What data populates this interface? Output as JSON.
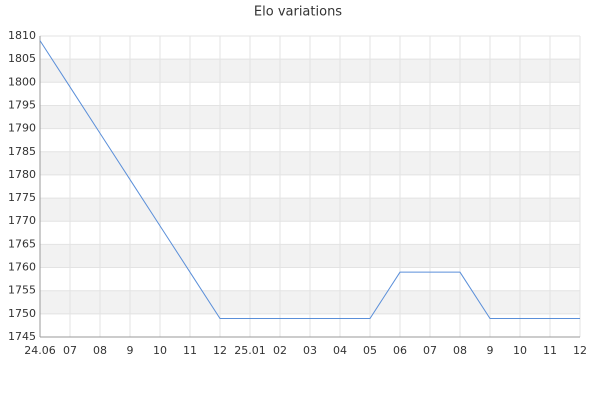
{
  "chart_data": {
    "type": "line",
    "title": "Elo variations",
    "categories": [
      "24.06",
      "07",
      "08",
      "9",
      "10",
      "11",
      "12",
      "25.01",
      "02",
      "03",
      "04",
      "05",
      "06",
      "07",
      "08",
      "9",
      "10",
      "11",
      "12"
    ],
    "values": [
      1809,
      1799,
      1789,
      1779,
      1769,
      1759,
      1749,
      1749,
      1749,
      1749,
      1749,
      1749,
      1759,
      1759,
      1759,
      1749,
      1749,
      1749,
      1749
    ],
    "color": "#5b8fd9",
    "ylim": [
      1745,
      1810
    ],
    "yticks": [
      1745,
      1750,
      1755,
      1760,
      1765,
      1770,
      1775,
      1780,
      1785,
      1790,
      1795,
      1800,
      1805,
      1810
    ],
    "grid": true
  }
}
